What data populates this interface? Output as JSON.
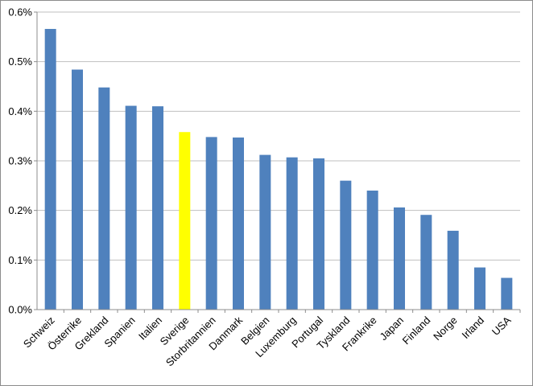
{
  "chart_data": {
    "type": "bar",
    "title": "",
    "xlabel": "",
    "ylabel": "",
    "categories": [
      "Schweiz",
      "Österrike",
      "Grekland",
      "Spanien",
      "Italien",
      "Sverige",
      "Storbritannien",
      "Danmark",
      "Belgien",
      "Luxemburg",
      "Portugal",
      "Tyskland",
      "Frankrike",
      "Japan",
      "Finland",
      "Norge",
      "Irland",
      "USA"
    ],
    "values": [
      0.566,
      0.484,
      0.448,
      0.411,
      0.41,
      0.358,
      0.348,
      0.347,
      0.312,
      0.307,
      0.305,
      0.26,
      0.24,
      0.206,
      0.191,
      0.159,
      0.085,
      0.064
    ],
    "ylim": [
      0,
      0.6
    ],
    "yticks": [
      0,
      0.1,
      0.2,
      0.3,
      0.4,
      0.5,
      0.6
    ],
    "ytick_labels": [
      "0.0%",
      "0.1%",
      "0.2%",
      "0.3%",
      "0.4%",
      "0.5%",
      "0.6%"
    ],
    "grid": true,
    "legend": "none",
    "colors": {
      "bar": "#4f81bd",
      "highlight": "#ffff00",
      "highlight_category": "Sverige",
      "grid": "#bfbfbf",
      "axis": "#8c8c8c"
    }
  }
}
